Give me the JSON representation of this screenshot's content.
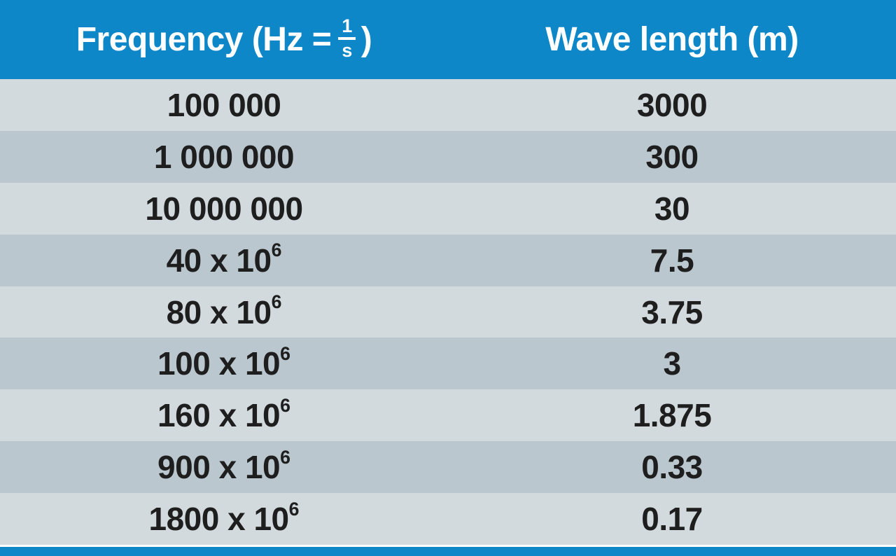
{
  "colors": {
    "blue": "#0d87c8",
    "row-light": "#d2dade",
    "row-dark": "#bac7ce",
    "text-dark": "#1e1e1e",
    "header-text": "#ffffff",
    "gap-white": "#ffffff"
  },
  "table": {
    "header": {
      "col1_prefix": "Frequency (Hz =",
      "frac_numerator": "1",
      "frac_denominator": "s",
      "col1_suffix": ")",
      "col2": "Wave length (m)"
    },
    "rows": [
      {
        "freq_base": "100 000",
        "freq_sup": "",
        "wavelength": "3000"
      },
      {
        "freq_base": "1 000 000",
        "freq_sup": "",
        "wavelength": "300"
      },
      {
        "freq_base": "10 000 000",
        "freq_sup": "",
        "wavelength": "30"
      },
      {
        "freq_base": "40 x 10",
        "freq_sup": "6",
        "wavelength": "7.5"
      },
      {
        "freq_base": "80 x 10",
        "freq_sup": "6",
        "wavelength": "3.75"
      },
      {
        "freq_base": "100 x 10",
        "freq_sup": "6",
        "wavelength": "3"
      },
      {
        "freq_base": "160 x 10",
        "freq_sup": "6",
        "wavelength": "1.875"
      },
      {
        "freq_base": "900 x 10",
        "freq_sup": "6",
        "wavelength": "0.33"
      },
      {
        "freq_base": "1800 x 10",
        "freq_sup": "6",
        "wavelength": "0.17"
      }
    ]
  },
  "chart_data": {
    "type": "table",
    "title": "",
    "columns": [
      "Frequency (Hz = 1/s)",
      "Wave length (m)"
    ],
    "rows": [
      [
        "100 000",
        "3000"
      ],
      [
        "1 000 000",
        "300"
      ],
      [
        "10 000 000",
        "30"
      ],
      [
        "40 x 10⁶",
        "7.5"
      ],
      [
        "80 x 10⁶",
        "3.75"
      ],
      [
        "100 x 10⁶",
        "3"
      ],
      [
        "160 x 10⁶",
        "1.875"
      ],
      [
        "900 x 10⁶",
        "0.33"
      ],
      [
        "1800 x 10⁶",
        "0.17"
      ]
    ],
    "frequencies_hz": [
      100000,
      1000000,
      10000000,
      40000000,
      80000000,
      100000000,
      160000000,
      900000000,
      1800000000
    ],
    "wavelengths_m": [
      3000,
      300,
      30,
      7.5,
      3.75,
      3,
      1.875,
      0.33,
      0.17
    ],
    "layout": {
      "header_background": "#0d87c8",
      "stripe_colors": [
        "#d2dade",
        "#bac7ce"
      ],
      "bottom_accent_bar": "#0d87c8"
    }
  }
}
